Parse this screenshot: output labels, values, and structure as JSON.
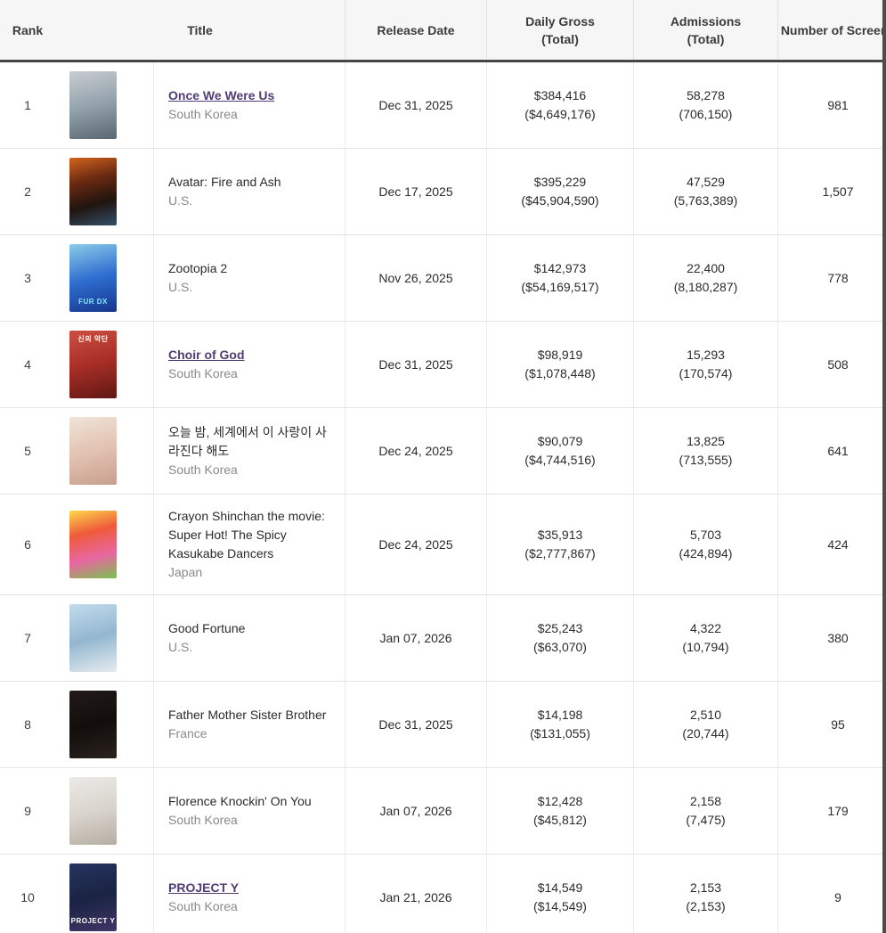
{
  "colors": {
    "link_purple": "#4f3d73",
    "country_gray": "#8a8a8a",
    "header_bg": "#f6f6f6",
    "header_bottom_border": "#474747",
    "row_border": "#e4e4e4",
    "scrollbar": "#4c4c4c"
  },
  "table": {
    "columns": [
      {
        "id": "rank",
        "label": "Rank"
      },
      {
        "id": "title",
        "label": "Title"
      },
      {
        "id": "release_date",
        "label": "Release Date"
      },
      {
        "id": "daily_gross",
        "label": "Daily Gross",
        "sub": "(Total)"
      },
      {
        "id": "admissions",
        "label": "Admissions",
        "sub": "(Total)"
      },
      {
        "id": "screens",
        "label": "Number of Screens"
      }
    ],
    "rows": [
      {
        "rank": "1",
        "title": "Once We Were Us",
        "is_link": true,
        "country": "South Korea",
        "release_date": "Dec 31, 2025",
        "daily_gross": "$384,416",
        "daily_gross_total": "($4,649,176)",
        "admissions": "58,278",
        "admissions_total": "(706,150)",
        "screens": "981",
        "poster": {
          "name": "once-we-were-us-poster",
          "colors": [
            "#c9cdd0",
            "#93a2ad",
            "#5a6671"
          ],
          "label": "",
          "label_color": "",
          "label_pos": ""
        }
      },
      {
        "rank": "2",
        "title": "Avatar: Fire and Ash",
        "is_link": false,
        "country": "U.S.",
        "release_date": "Dec 17, 2025",
        "daily_gross": "$395,229",
        "daily_gross_total": "($45,904,590)",
        "admissions": "47,529",
        "admissions_total": "(5,763,389)",
        "screens": "1,507",
        "poster": {
          "name": "avatar-fire-and-ash-poster",
          "colors": [
            "#d4641e",
            "#6b2a12",
            "#20140f",
            "#33506a"
          ],
          "label": "",
          "label_color": "",
          "label_pos": ""
        }
      },
      {
        "rank": "3",
        "title": "Zootopia 2",
        "is_link": false,
        "country": "U.S.",
        "release_date": "Nov 26, 2025",
        "daily_gross": "$142,973",
        "daily_gross_total": "($54,169,517)",
        "admissions": "22,400",
        "admissions_total": "(8,180,287)",
        "screens": "778",
        "poster": {
          "name": "zootopia-2-poster",
          "colors": [
            "#8ccbe9",
            "#2f6ed0",
            "#16368b"
          ],
          "label": "FUR DX",
          "label_color": "#86e7ff",
          "label_pos": "bottom"
        }
      },
      {
        "rank": "4",
        "title": "Choir of God",
        "is_link": true,
        "country": "South Korea",
        "release_date": "Dec 31, 2025",
        "daily_gross": "$98,919",
        "daily_gross_total": "($1,078,448)",
        "admissions": "15,293",
        "admissions_total": "(170,574)",
        "screens": "508",
        "poster": {
          "name": "choir-of-god-poster",
          "colors": [
            "#cc4f41",
            "#a62e27",
            "#611713"
          ],
          "label": "신의 악단",
          "label_color": "#ffffff",
          "label_pos": "top"
        }
      },
      {
        "rank": "5",
        "title": "오늘 밤, 세계에서 이 사랑이 사라진다 해도",
        "is_link": false,
        "country": "South Korea",
        "release_date": "Dec 24, 2025",
        "daily_gross": "$90,079",
        "daily_gross_total": "($4,744,516)",
        "admissions": "13,825",
        "admissions_total": "(713,555)",
        "screens": "641",
        "poster": {
          "name": "tonight-this-love-poster",
          "colors": [
            "#f1e4da",
            "#e2c2b1",
            "#c99f8e"
          ],
          "label": "",
          "label_color": "",
          "label_pos": ""
        }
      },
      {
        "rank": "6",
        "title": "Crayon Shinchan the movie: Super Hot! The Spicy Kasukabe Dancers",
        "is_link": false,
        "country": "Japan",
        "release_date": "Dec 24, 2025",
        "daily_gross": "$35,913",
        "daily_gross_total": "($2,777,867)",
        "admissions": "5,703",
        "admissions_total": "(424,894)",
        "screens": "424",
        "poster": {
          "name": "crayon-shinchan-poster",
          "colors": [
            "#ffd84d",
            "#ef5a3a",
            "#e867a1",
            "#79c24f"
          ],
          "label": "",
          "label_color": "",
          "label_pos": ""
        }
      },
      {
        "rank": "7",
        "title": "Good Fortune",
        "is_link": false,
        "country": "U.S.",
        "release_date": "Jan 07, 2026",
        "daily_gross": "$25,243",
        "daily_gross_total": "($63,070)",
        "admissions": "4,322",
        "admissions_total": "(10,794)",
        "screens": "380",
        "poster": {
          "name": "good-fortune-poster",
          "colors": [
            "#c2dbec",
            "#93b7d1",
            "#e6ebef"
          ],
          "label": "",
          "label_color": "",
          "label_pos": ""
        }
      },
      {
        "rank": "8",
        "title": "Father Mother Sister Brother",
        "is_link": false,
        "country": "France",
        "release_date": "Dec 31, 2025",
        "daily_gross": "$14,198",
        "daily_gross_total": "($131,055)",
        "admissions": "2,510",
        "admissions_total": "(20,744)",
        "screens": "95",
        "poster": {
          "name": "father-mother-sister-brother-poster",
          "colors": [
            "#221b18",
            "#120e0c",
            "#2a221d"
          ],
          "label": "",
          "label_color": "",
          "label_pos": ""
        }
      },
      {
        "rank": "9",
        "title": "Florence Knockin' On You",
        "is_link": false,
        "country": "South Korea",
        "release_date": "Jan 07, 2026",
        "daily_gross": "$12,428",
        "daily_gross_total": "($45,812)",
        "admissions": "2,158",
        "admissions_total": "(7,475)",
        "screens": "179",
        "poster": {
          "name": "florence-knockin-on-you-poster",
          "colors": [
            "#eceae7",
            "#d9d4cd",
            "#b5aea4"
          ],
          "label": "",
          "label_color": "",
          "label_pos": ""
        }
      },
      {
        "rank": "10",
        "title": "PROJECT Y",
        "is_link": true,
        "country": "South Korea",
        "release_date": "Jan 21, 2026",
        "daily_gross": "$14,549",
        "daily_gross_total": "($14,549)",
        "admissions": "2,153",
        "admissions_total": "(2,153)",
        "screens": "9",
        "poster": {
          "name": "project-y-poster",
          "colors": [
            "#273461",
            "#1a2343",
            "#413667"
          ],
          "label": "PROJECT Y",
          "label_color": "#ffffff",
          "label_pos": "bottom"
        }
      }
    ]
  }
}
